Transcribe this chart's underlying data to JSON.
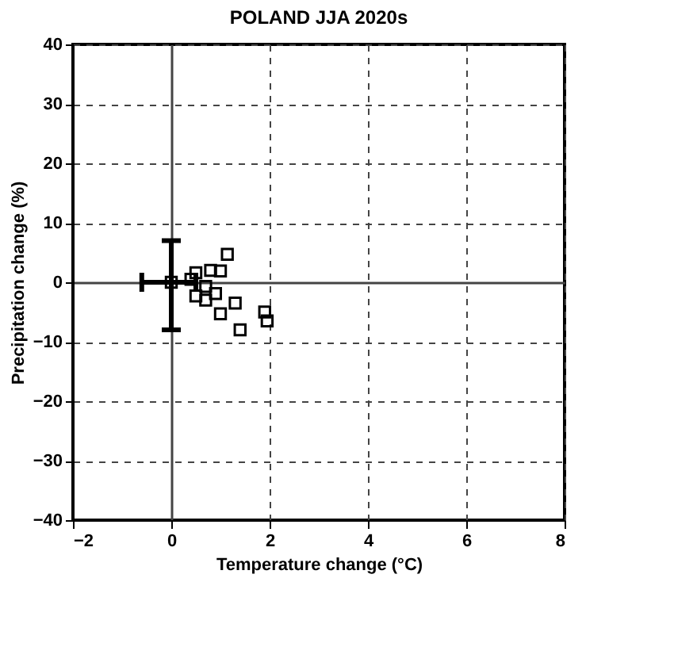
{
  "chart_data": {
    "type": "scatter",
    "title": "POLAND JJA 2020s",
    "xlabel": "Temperature change (°C)",
    "ylabel": "Precipitation change (%)",
    "xlim": [
      -2,
      8
    ],
    "xticks": [
      -2,
      0,
      2,
      4,
      6,
      8
    ],
    "ylim": [
      -40,
      40
    ],
    "yticks": [
      -40,
      -30,
      -20,
      -10,
      0,
      10,
      20,
      30,
      40
    ],
    "grid": true,
    "series": [
      {
        "color": "#000000",
        "marker": "square",
        "x": [
          0,
          1.14,
          0.5,
          0.8,
          1.0,
          0.4,
          0.7,
          0.9,
          0.7,
          1.3,
          1.0,
          1.4,
          1.9,
          1.95,
          0.5
        ],
        "values": [
          0,
          4.7,
          1.6,
          2.0,
          1.9,
          0.5,
          -0.7,
          -1.9,
          -3.0,
          -3.5,
          -5.3,
          -8.0,
          -5.0,
          -6.5,
          -2.3
        ],
        "errors": [
          [
            -8,
            7
          ],
          null,
          null,
          null,
          null,
          null,
          null,
          null,
          null,
          null,
          null,
          null,
          null,
          null,
          null
        ],
        "xerrors": [
          [
            -0.6,
            0.5
          ],
          null,
          null,
          null,
          null,
          null,
          null,
          null,
          null,
          null,
          null,
          null,
          null,
          null,
          null
        ]
      }
    ]
  }
}
